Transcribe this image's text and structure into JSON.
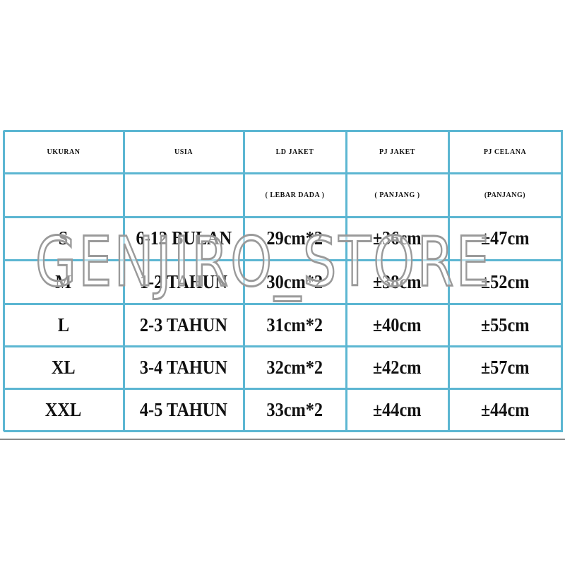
{
  "table": {
    "columns": [
      {
        "title": "UKURAN"
      },
      {
        "title": "USIA"
      },
      {
        "title": "LD JAKET",
        "subtitle": "( LEBAR DADA )"
      },
      {
        "title": "PJ JAKET",
        "subtitle": "( PANJANG )"
      },
      {
        "title": "PJ CELANA",
        "subtitle": "(PANJANG)"
      }
    ],
    "rows": [
      [
        "S",
        "6-12 BULAN",
        "29cm*2",
        "±36cm",
        "±47cm"
      ],
      [
        "M",
        "1-2 TAHUN",
        "30cm*2",
        "±38cm",
        "±52cm"
      ],
      [
        "L",
        "2-3 TAHUN",
        "31cm*2",
        "±40cm",
        "±55cm"
      ],
      [
        "XL",
        "3-4 TAHUN",
        "32cm*2",
        "±42cm",
        "±57cm"
      ],
      [
        "XXL",
        "4-5 TAHUN",
        "33cm*2",
        "±44cm",
        "±44cm"
      ]
    ]
  },
  "watermark": "GENJIRO_STORE"
}
